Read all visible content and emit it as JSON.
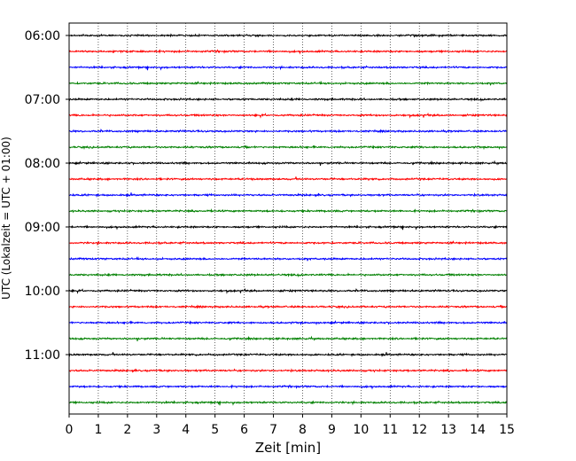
{
  "chart_data": {
    "type": "line",
    "title": "",
    "xlabel": "Zeit  [min]",
    "ylabel": "UTC (Lokalzeit = UTC + 01:00)",
    "xlim": [
      0,
      15
    ],
    "x_ticks": [
      "0",
      "1",
      "2",
      "3",
      "4",
      "5",
      "6",
      "7",
      "8",
      "9",
      "10",
      "11",
      "12",
      "13",
      "14",
      "15"
    ],
    "y_ticks": [
      {
        "label": "06:00",
        "row": 0
      },
      {
        "label": "07:00",
        "row": 4
      },
      {
        "label": "08:00",
        "row": 8
      },
      {
        "label": "09:00",
        "row": 12
      },
      {
        "label": "10:00",
        "row": 16
      },
      {
        "label": "11:00",
        "row": 20
      }
    ],
    "trace_interval_minutes": 15,
    "start_time": "06:00",
    "trace_count": 24,
    "trace_colors": [
      "#000000",
      "#ff0000",
      "#0000ff",
      "#008000"
    ],
    "grid": "vertical-dotted"
  }
}
